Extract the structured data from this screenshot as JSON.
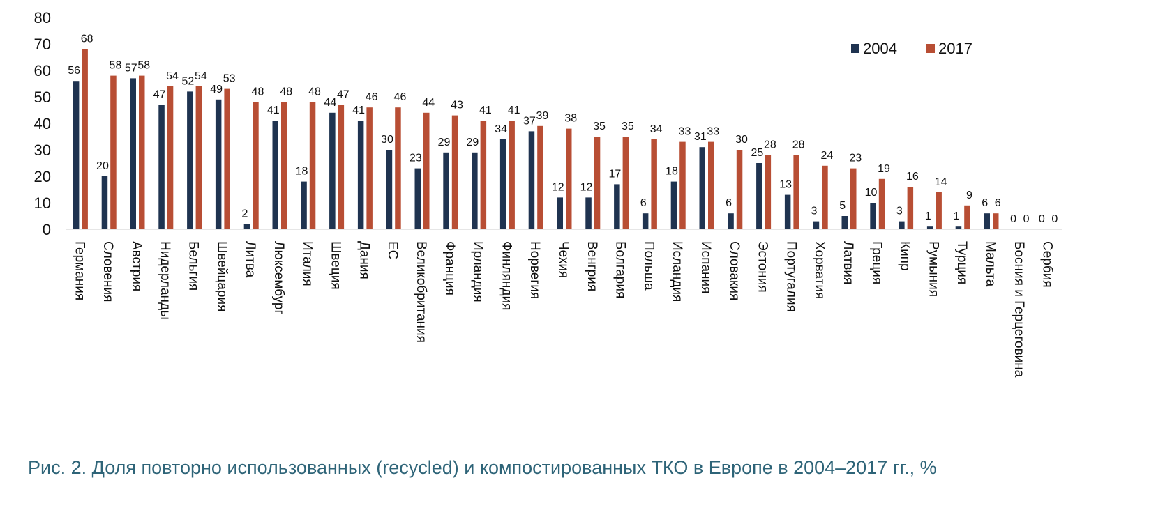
{
  "caption": "Рис. 2. Доля повторно использованных (recycled) и компостированных ТКО в Европе в 2004–2017 гг., %",
  "colors": {
    "s2004": "#1f3350",
    "s2017": "#b84e34",
    "axis": "#cccccc"
  },
  "chart_data": {
    "type": "bar",
    "title": "",
    "xlabel": "",
    "ylabel": "",
    "ylim": [
      0,
      80
    ],
    "yticks": [
      0,
      10,
      20,
      30,
      40,
      50,
      60,
      70,
      80
    ],
    "grid": false,
    "legend_position": "top-right",
    "categories": [
      "Германия",
      "Словения",
      "Австрия",
      "Нидерланды",
      "Бельгия",
      "Швейцария",
      "Литва",
      "Люксембург",
      "Италия",
      "Швеция",
      "Дания",
      "ЕС",
      "Великобритания",
      "Франция",
      "Ирландия",
      "Финляндия",
      "Норвегия",
      "Чехия",
      "Венгрия",
      "Болгария",
      "Польша",
      "Исландия",
      "Испания",
      "Словакия",
      "Эстония",
      "Португалия",
      "Хорватия",
      "Латвия",
      "Греция",
      "Кипр",
      "Румыния",
      "Турция",
      "Мальта",
      "Босния и Герцеговина",
      "Сербия"
    ],
    "series": [
      {
        "name": "2004",
        "values": [
          56,
          20,
          57,
          47,
          52,
          49,
          2,
          41,
          18,
          44,
          41,
          30,
          23,
          29,
          29,
          34,
          37,
          12,
          12,
          17,
          6,
          18,
          31,
          6,
          25,
          13,
          3,
          5,
          10,
          3,
          1,
          1,
          6,
          0,
          0
        ]
      },
      {
        "name": "2017",
        "values": [
          68,
          58,
          58,
          54,
          54,
          53,
          48,
          48,
          48,
          47,
          46,
          46,
          44,
          43,
          41,
          41,
          39,
          38,
          35,
          35,
          34,
          33,
          33,
          30,
          28,
          28,
          24,
          23,
          19,
          16,
          14,
          9,
          6,
          0,
          0
        ]
      }
    ]
  }
}
